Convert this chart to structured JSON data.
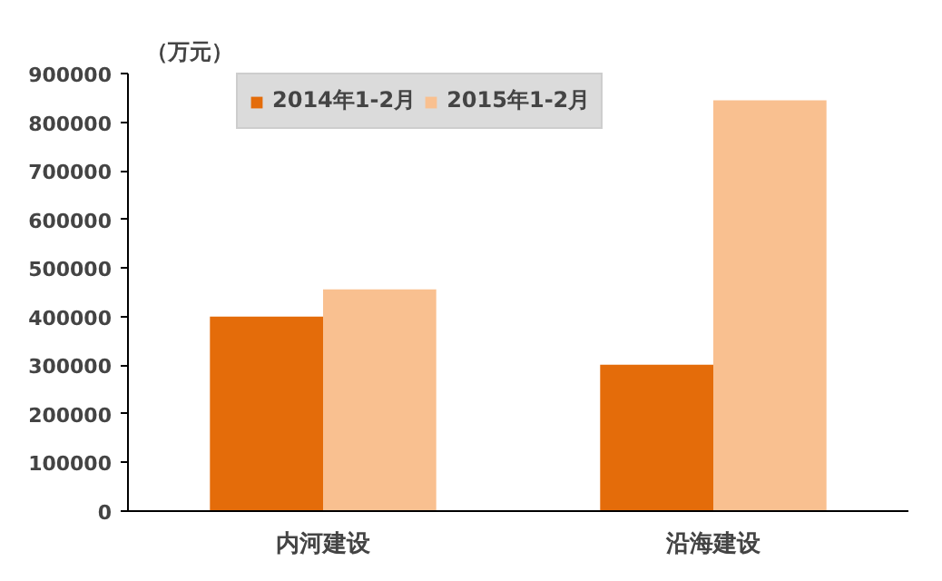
{
  "chart_data": {
    "type": "bar",
    "ylabel": "（万元）",
    "categories": [
      "内河建设",
      "沿海建设"
    ],
    "series": [
      {
        "name": "2014年1-2月",
        "color": "#e46c0a",
        "values": [
          400000,
          301000
        ]
      },
      {
        "name": "2015年1-2月",
        "color": "#f9c090",
        "values": [
          456000,
          845000
        ]
      }
    ],
    "ylim": [
      0,
      900000
    ],
    "yticks": [
      0,
      100000,
      200000,
      300000,
      400000,
      500000,
      600000,
      700000,
      800000,
      900000
    ],
    "grid": false,
    "legend": "top left"
  }
}
